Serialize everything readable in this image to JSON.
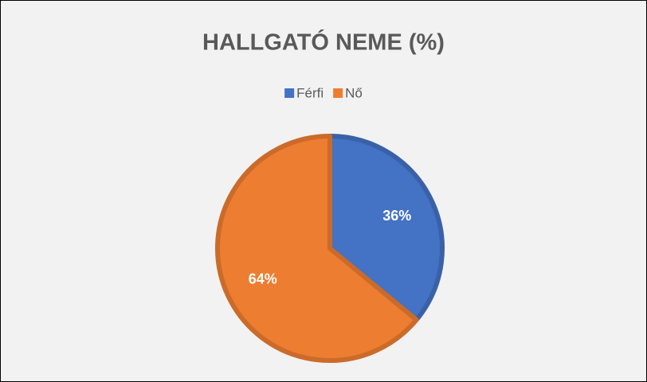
{
  "chart_data": {
    "type": "pie",
    "title": "HALLGATÓ NEME (%)",
    "categories": [
      "Férfi",
      "Nő"
    ],
    "values": [
      36,
      64
    ],
    "value_labels": [
      "36%",
      "64%"
    ],
    "colors": [
      "#4472c4",
      "#ed7d31"
    ],
    "legend": "top"
  }
}
